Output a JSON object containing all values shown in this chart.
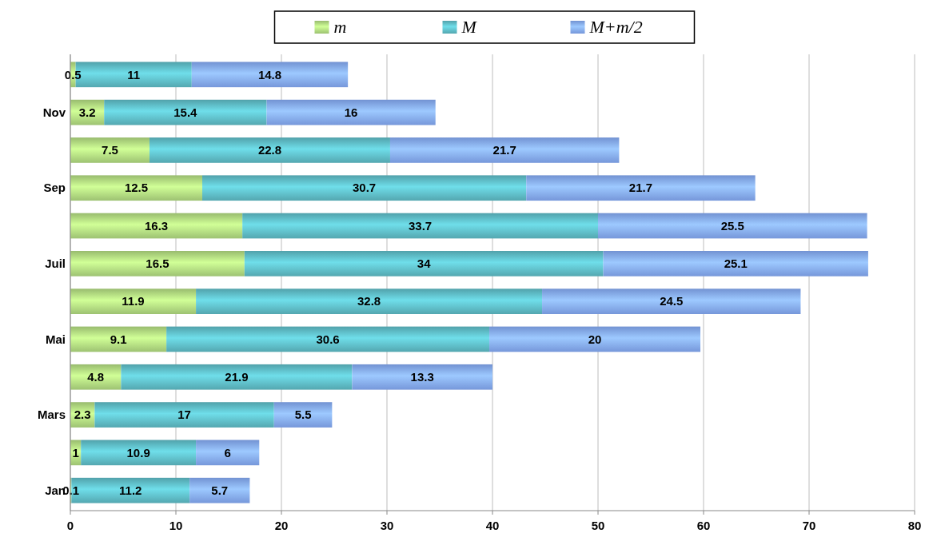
{
  "chart_data": {
    "type": "bar",
    "orientation": "horizontal",
    "stacked": true,
    "data_labels": true,
    "grid": "x",
    "legend": "top",
    "categories": [
      null,
      "Nov",
      null,
      "Sep",
      null,
      "Juil",
      null,
      "Mai",
      null,
      "Mars",
      null,
      "Jan"
    ],
    "series": [
      {
        "name": "m",
        "color": "#a9d07a",
        "values": [
          0.5,
          3.2,
          7.5,
          12.5,
          16.3,
          16.5,
          11.9,
          9.1,
          4.8,
          2.3,
          1,
          0.1
        ]
      },
      {
        "name": "M",
        "color": "#5ab3bd",
        "values": [
          11,
          15.4,
          22.8,
          30.7,
          33.7,
          34,
          32.8,
          30.6,
          21.9,
          17,
          10.9,
          11.2
        ]
      },
      {
        "name": "M+m/2",
        "color": "#7fa2ea",
        "values": [
          14.8,
          16,
          21.7,
          21.7,
          25.5,
          25.1,
          24.5,
          20,
          13.3,
          5.5,
          6,
          5.7
        ]
      }
    ],
    "xlim": [
      0,
      80
    ],
    "xticks": [
      0,
      10,
      20,
      30,
      40,
      50,
      60,
      70,
      80
    ]
  }
}
